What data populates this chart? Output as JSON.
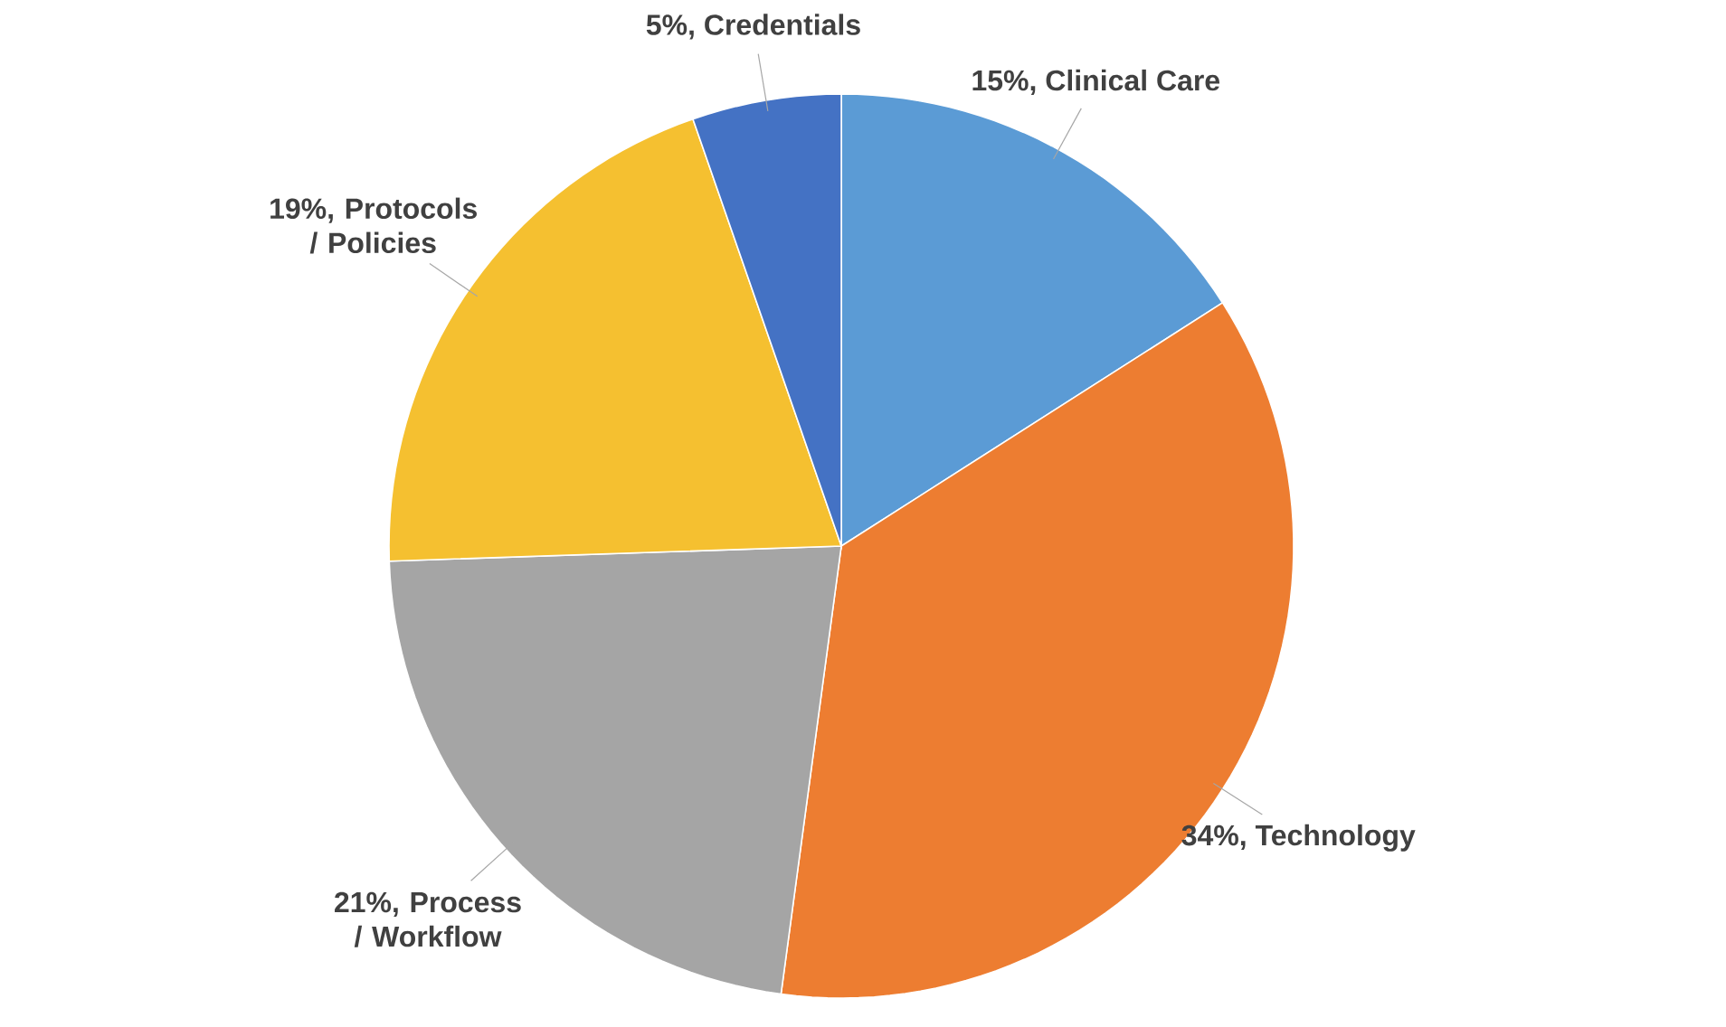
{
  "chart_data": {
    "type": "pie",
    "categories": [
      "Clinical Care",
      "Technology",
      "Process / Workflow",
      "Protocols / Policies",
      "Credentials"
    ],
    "values": [
      15,
      34,
      21,
      19,
      5
    ],
    "value_labels": [
      "15%,",
      "34%,",
      "21%,",
      "19%,",
      "5%,"
    ],
    "colors": [
      "#5b9bd5",
      "#ed7d31",
      "#a5a5a5",
      "#f5c030",
      "#4472c4"
    ]
  }
}
